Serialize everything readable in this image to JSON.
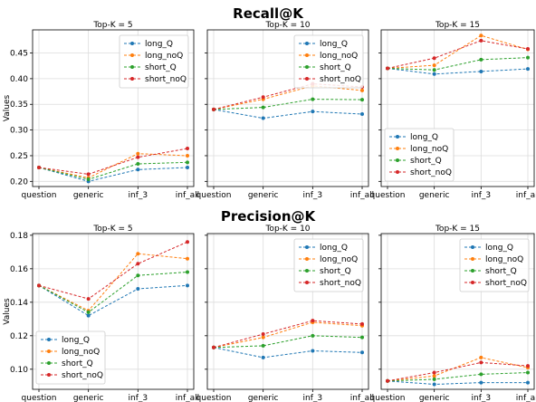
{
  "titles": {
    "row1": "Recall@K",
    "row2": "Precision@K"
  },
  "ylabel": "Values",
  "colors": {
    "long_Q": "#1f77b4",
    "long_noQ": "#ff7f0e",
    "short_Q": "#2ca02c",
    "short_noQ": "#d62728"
  },
  "chart_data": [
    {
      "type": "line",
      "title": "Top-K = 5",
      "metric": "Recall@K",
      "categories": [
        "question",
        "generic",
        "inf_3",
        "inf_all"
      ],
      "ylim": [
        0.19,
        0.495
      ],
      "yticks": [
        0.2,
        0.25,
        0.3,
        0.35,
        0.4,
        0.45
      ],
      "grid": true,
      "legend": "top-right",
      "xlabel": "",
      "ylabel": "Values",
      "series": [
        {
          "name": "long_Q",
          "values": [
            0.227,
            0.2,
            0.223,
            0.227
          ]
        },
        {
          "name": "long_noQ",
          "values": [
            0.227,
            0.207,
            0.254,
            0.25
          ]
        },
        {
          "name": "short_Q",
          "values": [
            0.227,
            0.204,
            0.234,
            0.237
          ]
        },
        {
          "name": "short_noQ",
          "values": [
            0.227,
            0.214,
            0.247,
            0.264
          ]
        }
      ]
    },
    {
      "type": "line",
      "title": "Top-K = 10",
      "metric": "Recall@K",
      "categories": [
        "question",
        "generic",
        "inf_3",
        "inf_all"
      ],
      "ylim": [
        0.19,
        0.495
      ],
      "yticks": [
        0.2,
        0.25,
        0.3,
        0.35,
        0.4,
        0.45
      ],
      "grid": true,
      "legend": "top-right",
      "xlabel": "",
      "ylabel": "",
      "series": [
        {
          "name": "long_Q",
          "values": [
            0.34,
            0.323,
            0.336,
            0.331
          ]
        },
        {
          "name": "long_noQ",
          "values": [
            0.34,
            0.36,
            0.386,
            0.377
          ]
        },
        {
          "name": "short_Q",
          "values": [
            0.34,
            0.344,
            0.36,
            0.359
          ]
        },
        {
          "name": "short_noQ",
          "values": [
            0.34,
            0.364,
            0.39,
            0.384
          ]
        }
      ]
    },
    {
      "type": "line",
      "title": "Top-K = 15",
      "metric": "Recall@K",
      "categories": [
        "question",
        "generic",
        "inf_3",
        "inf_all"
      ],
      "ylim": [
        0.19,
        0.495
      ],
      "yticks": [
        0.2,
        0.25,
        0.3,
        0.35,
        0.4,
        0.45
      ],
      "grid": true,
      "legend": "bottom-left",
      "xlabel": "",
      "ylabel": "",
      "series": [
        {
          "name": "long_Q",
          "values": [
            0.42,
            0.409,
            0.414,
            0.419
          ]
        },
        {
          "name": "long_noQ",
          "values": [
            0.42,
            0.426,
            0.484,
            0.457
          ]
        },
        {
          "name": "short_Q",
          "values": [
            0.42,
            0.417,
            0.437,
            0.441
          ]
        },
        {
          "name": "short_noQ",
          "values": [
            0.42,
            0.44,
            0.474,
            0.458
          ]
        }
      ]
    },
    {
      "type": "line",
      "title": "Top-K = 5",
      "metric": "Precision@K",
      "categories": [
        "question",
        "generic",
        "inf_3",
        "inf_all"
      ],
      "ylim": [
        0.088,
        0.181
      ],
      "yticks": [
        0.1,
        0.12,
        0.14,
        0.16,
        0.18
      ],
      "grid": true,
      "legend": "bottom-left",
      "xlabel": "",
      "ylabel": "Values",
      "series": [
        {
          "name": "long_Q",
          "values": [
            0.15,
            0.132,
            0.148,
            0.15
          ]
        },
        {
          "name": "long_noQ",
          "values": [
            0.15,
            0.135,
            0.169,
            0.166
          ]
        },
        {
          "name": "short_Q",
          "values": [
            0.15,
            0.134,
            0.156,
            0.158
          ]
        },
        {
          "name": "short_noQ",
          "values": [
            0.15,
            0.142,
            0.163,
            0.176
          ]
        }
      ]
    },
    {
      "type": "line",
      "title": "Top-K = 10",
      "metric": "Precision@K",
      "categories": [
        "question",
        "generic",
        "inf_3",
        "inf_all"
      ],
      "ylim": [
        0.088,
        0.181
      ],
      "yticks": [
        0.1,
        0.12,
        0.14,
        0.16,
        0.18
      ],
      "grid": true,
      "legend": "top-right",
      "xlabel": "",
      "ylabel": "",
      "series": [
        {
          "name": "long_Q",
          "values": [
            0.113,
            0.107,
            0.111,
            0.11
          ]
        },
        {
          "name": "long_noQ",
          "values": [
            0.113,
            0.119,
            0.128,
            0.126
          ]
        },
        {
          "name": "short_Q",
          "values": [
            0.113,
            0.114,
            0.12,
            0.119
          ]
        },
        {
          "name": "short_noQ",
          "values": [
            0.113,
            0.121,
            0.129,
            0.127
          ]
        }
      ]
    },
    {
      "type": "line",
      "title": "Top-K = 15",
      "metric": "Precision@K",
      "categories": [
        "question",
        "generic",
        "inf_3",
        "inf_all"
      ],
      "ylim": [
        0.088,
        0.181
      ],
      "yticks": [
        0.1,
        0.12,
        0.14,
        0.16,
        0.18
      ],
      "grid": true,
      "legend": "top-right",
      "xlabel": "",
      "ylabel": "",
      "series": [
        {
          "name": "long_Q",
          "values": [
            0.093,
            0.091,
            0.092,
            0.092
          ]
        },
        {
          "name": "long_noQ",
          "values": [
            0.093,
            0.096,
            0.107,
            0.101
          ]
        },
        {
          "name": "short_Q",
          "values": [
            0.093,
            0.094,
            0.097,
            0.098
          ]
        },
        {
          "name": "short_noQ",
          "values": [
            0.093,
            0.098,
            0.104,
            0.102
          ]
        }
      ]
    }
  ]
}
